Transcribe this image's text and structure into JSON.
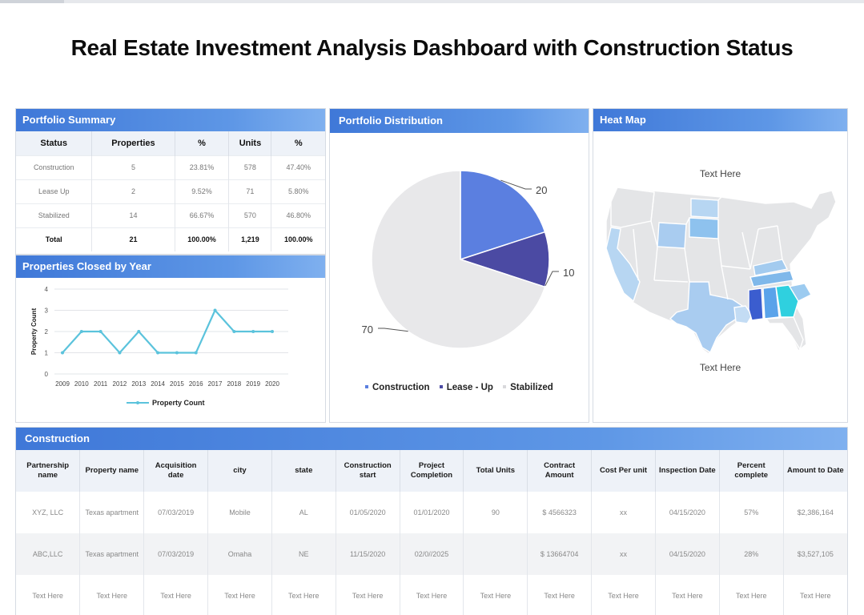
{
  "title": "Real Estate Investment Analysis Dashboard with Construction Status",
  "colors": {
    "accent": "#3f78d8",
    "construction": "#5b7fe0",
    "lease_up": "#4b4aa3",
    "stabilized": "#e8e8ea",
    "line": "#5bc3dc"
  },
  "portfolio_summary": {
    "header": "Portfolio Summary",
    "columns": [
      "Status",
      "Properties",
      "%",
      "Units",
      "%"
    ],
    "rows": [
      [
        "Construction",
        "5",
        "23.81%",
        "578",
        "47.40%"
      ],
      [
        "Lease  Up",
        "2",
        "9.52%",
        "71",
        "5.80%"
      ],
      [
        "Stabilized",
        "14",
        "66.67%",
        "570",
        "46.80%"
      ]
    ],
    "total": [
      "Total",
      "21",
      "100.00%",
      "1,219",
      "100.00%"
    ]
  },
  "properties_closed": {
    "header": "Properties Closed by Year",
    "chart_data": {
      "type": "line",
      "x": [
        "2009",
        "2010",
        "2011",
        "2012",
        "2013",
        "2014",
        "2015",
        "2016",
        "2017",
        "2018",
        "2019",
        "2020"
      ],
      "series": [
        {
          "name": "Property Count",
          "values": [
            1,
            2,
            2,
            1,
            2,
            1,
            1,
            1,
            3,
            2,
            2,
            2
          ]
        }
      ],
      "ylabel": "Property Count",
      "ylim": [
        0,
        4
      ],
      "yticks": [
        "0",
        "1",
        "2",
        "3",
        "4"
      ]
    }
  },
  "portfolio_distribution": {
    "header": "Portfolio Distribution",
    "chart_data": {
      "type": "pie",
      "categories": [
        "Construction",
        "Lease - Up",
        "Stabilized"
      ],
      "values": [
        20,
        10,
        70
      ],
      "labels": [
        "20",
        "10",
        "70"
      ]
    }
  },
  "heat_map": {
    "header": "Heat Map",
    "text_top": "Text Here",
    "text_bottom": "Text Here"
  },
  "construction": {
    "header": "Construction",
    "columns": [
      "Partnership name",
      "Property name",
      "Acquisition date",
      "city",
      "state",
      "Construction start",
      "Project Completion",
      "Total Units",
      "Contract Amount",
      "Cost Per unit",
      "Inspection Date",
      "Percent complete",
      "Amount to Date"
    ],
    "rows": [
      [
        "XYZ, LLC",
        "Texas apartment",
        "07/03/2019",
        "Mobile",
        "AL",
        "01/05/2020",
        "01/01/2020",
        "90",
        "$ 4566323",
        "xx",
        "04/15/2020",
        "57%",
        "$2,386,164"
      ],
      [
        "ABC,LLC",
        "Texas apartment",
        "07/03/2019",
        "Omaha",
        "NE",
        "11/15/2020",
        "02/0//2025",
        "",
        "$ 13664704",
        "xx",
        "04/15/2020",
        "28%",
        "$3,527,105"
      ],
      [
        "Text Here",
        "Text Here",
        "Text Here",
        "Text Here",
        "Text Here",
        "Text Here",
        "Text Here",
        "Text Here",
        "Text Here",
        "Text Here",
        "Text Here",
        "Text Here",
        "Text Here"
      ]
    ]
  }
}
